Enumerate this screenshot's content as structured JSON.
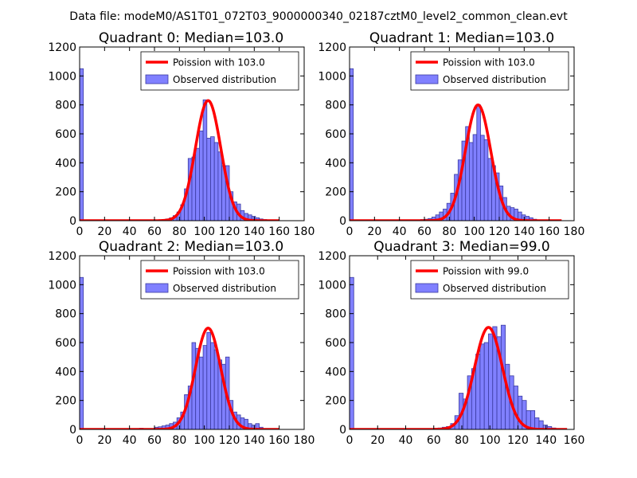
{
  "figure": {
    "suptitle": "Data file: modeM0/AS1T01_072T03_9000000340_02187cztM0_level2_common_clean.evt"
  },
  "colors": {
    "bar_fill": "#8080ff",
    "bar_edge": "#3a3aa0",
    "curve": "#ff0000",
    "axes": "#000000",
    "legend_edge": "#000000"
  },
  "chart_data": [
    {
      "type": "bar",
      "title": "Quadrant 0: Median=103.0",
      "xlabel": "",
      "ylabel": "",
      "xlim": [
        0,
        180
      ],
      "ylim": [
        0,
        1200
      ],
      "xticks": [
        0,
        20,
        40,
        60,
        80,
        100,
        120,
        140,
        160,
        180
      ],
      "yticks": [
        0,
        200,
        400,
        600,
        800,
        1000,
        1200
      ],
      "grid": false,
      "legend_position": "top-right",
      "legend": [
        "Poission with 103.0",
        "Observed distribution"
      ],
      "histogram": {
        "name": "Observed distribution",
        "bin_width": 3,
        "bins": [
          [
            0,
            1050
          ],
          [
            63,
            4
          ],
          [
            66,
            8
          ],
          [
            69,
            12
          ],
          [
            72,
            20
          ],
          [
            75,
            35
          ],
          [
            78,
            60
          ],
          [
            81,
            110
          ],
          [
            84,
            220
          ],
          [
            87,
            430
          ],
          [
            90,
            440
          ],
          [
            93,
            500
          ],
          [
            96,
            620
          ],
          [
            99,
            835
          ],
          [
            102,
            570
          ],
          [
            105,
            580
          ],
          [
            108,
            540
          ],
          [
            111,
            475
          ],
          [
            114,
            380
          ],
          [
            117,
            380
          ],
          [
            120,
            200
          ],
          [
            123,
            130
          ],
          [
            126,
            115
          ],
          [
            129,
            70
          ],
          [
            132,
            50
          ],
          [
            135,
            40
          ],
          [
            138,
            30
          ],
          [
            141,
            20
          ],
          [
            144,
            12
          ],
          [
            147,
            8
          ],
          [
            150,
            5
          ],
          [
            153,
            3
          ]
        ]
      },
      "curve": {
        "name": "Poission with 103.0",
        "mean": 103.0,
        "peak": 830,
        "sigma": 10.15,
        "x_range": [
          0,
          160
        ]
      }
    },
    {
      "type": "bar",
      "title": "Quadrant 1: Median=103.0",
      "xlabel": "",
      "ylabel": "",
      "xlim": [
        0,
        180
      ],
      "ylim": [
        0,
        1200
      ],
      "xticks": [
        0,
        20,
        40,
        60,
        80,
        100,
        120,
        140,
        160,
        180
      ],
      "yticks": [
        0,
        200,
        400,
        600,
        800,
        1000,
        1200
      ],
      "grid": false,
      "legend_position": "top-right",
      "legend": [
        "Poission with 103.0",
        "Observed distribution"
      ],
      "histogram": {
        "name": "Observed distribution",
        "bin_width": 3,
        "bins": [
          [
            0,
            1050
          ],
          [
            57,
            8
          ],
          [
            60,
            10
          ],
          [
            63,
            15
          ],
          [
            66,
            25
          ],
          [
            69,
            40
          ],
          [
            72,
            60
          ],
          [
            75,
            80
          ],
          [
            78,
            120
          ],
          [
            81,
            190
          ],
          [
            84,
            320
          ],
          [
            87,
            420
          ],
          [
            90,
            550
          ],
          [
            93,
            650
          ],
          [
            96,
            540
          ],
          [
            99,
            595
          ],
          [
            102,
            800
          ],
          [
            105,
            590
          ],
          [
            108,
            560
          ],
          [
            111,
            430
          ],
          [
            114,
            380
          ],
          [
            117,
            330
          ],
          [
            120,
            240
          ],
          [
            123,
            160
          ],
          [
            126,
            100
          ],
          [
            129,
            90
          ],
          [
            132,
            80
          ],
          [
            135,
            60
          ],
          [
            138,
            40
          ],
          [
            141,
            30
          ],
          [
            144,
            20
          ],
          [
            147,
            10
          ]
        ]
      },
      "curve": {
        "name": "Poission with 103.0",
        "mean": 103.0,
        "peak": 800,
        "sigma": 10.15,
        "x_range": [
          0,
          170
        ]
      }
    },
    {
      "type": "bar",
      "title": "Quadrant 2: Median=103.0",
      "xlabel": "",
      "ylabel": "",
      "xlim": [
        0,
        180
      ],
      "ylim": [
        0,
        1200
      ],
      "xticks": [
        0,
        20,
        40,
        60,
        80,
        100,
        120,
        140,
        160,
        180
      ],
      "yticks": [
        0,
        200,
        400,
        600,
        800,
        1000,
        1200
      ],
      "grid": false,
      "legend_position": "top-right",
      "legend": [
        "Poission with 103.0",
        "Observed distribution"
      ],
      "histogram": {
        "name": "Observed distribution",
        "bin_width": 3,
        "bins": [
          [
            0,
            1050
          ],
          [
            48,
            8
          ],
          [
            60,
            15
          ],
          [
            63,
            18
          ],
          [
            66,
            24
          ],
          [
            69,
            30
          ],
          [
            72,
            40
          ],
          [
            75,
            50
          ],
          [
            78,
            80
          ],
          [
            81,
            120
          ],
          [
            84,
            240
          ],
          [
            87,
            300
          ],
          [
            90,
            600
          ],
          [
            93,
            560
          ],
          [
            96,
            500
          ],
          [
            99,
            580
          ],
          [
            102,
            670
          ],
          [
            105,
            600
          ],
          [
            108,
            550
          ],
          [
            111,
            480
          ],
          [
            114,
            450
          ],
          [
            117,
            500
          ],
          [
            120,
            200
          ],
          [
            123,
            120
          ],
          [
            126,
            100
          ],
          [
            129,
            80
          ],
          [
            132,
            70
          ],
          [
            135,
            40
          ],
          [
            138,
            30
          ],
          [
            141,
            40
          ],
          [
            144,
            15
          ],
          [
            147,
            5
          ],
          [
            150,
            3
          ],
          [
            153,
            2
          ],
          [
            156,
            2
          ]
        ]
      },
      "curve": {
        "name": "Poission with 103.0",
        "mean": 103.0,
        "peak": 700,
        "sigma": 10.15,
        "x_range": [
          0,
          160
        ]
      }
    },
    {
      "type": "bar",
      "title": "Quadrant 3: Median=99.0",
      "xlabel": "",
      "ylabel": "",
      "xlim": [
        0,
        160
      ],
      "ylim": [
        0,
        1200
      ],
      "xticks": [
        0,
        20,
        40,
        60,
        80,
        100,
        120,
        140,
        160
      ],
      "yticks": [
        0,
        200,
        400,
        600,
        800,
        1000,
        1200
      ],
      "grid": false,
      "legend_position": "top-right",
      "legend": [
        "Poission with 99.0",
        "Observed distribution"
      ],
      "histogram": {
        "name": "Observed distribution",
        "bin_width": 3,
        "bins": [
          [
            0,
            1050
          ],
          [
            57,
            4
          ],
          [
            60,
            7
          ],
          [
            63,
            10
          ],
          [
            66,
            15
          ],
          [
            69,
            20
          ],
          [
            72,
            40
          ],
          [
            75,
            95
          ],
          [
            78,
            250
          ],
          [
            81,
            210
          ],
          [
            84,
            370
          ],
          [
            87,
            420
          ],
          [
            90,
            520
          ],
          [
            93,
            590
          ],
          [
            96,
            600
          ],
          [
            99,
            660
          ],
          [
            102,
            710
          ],
          [
            105,
            640
          ],
          [
            108,
            720
          ],
          [
            111,
            450
          ],
          [
            114,
            370
          ],
          [
            117,
            300
          ],
          [
            120,
            230
          ],
          [
            123,
            200
          ],
          [
            126,
            130
          ],
          [
            129,
            130
          ],
          [
            132,
            80
          ],
          [
            135,
            60
          ],
          [
            138,
            30
          ],
          [
            141,
            20
          ],
          [
            144,
            10
          ],
          [
            147,
            5
          ]
        ]
      },
      "curve": {
        "name": "Poission with 99.0",
        "mean": 99.0,
        "peak": 705,
        "sigma": 9.95,
        "x_range": [
          0,
          155
        ]
      }
    }
  ]
}
